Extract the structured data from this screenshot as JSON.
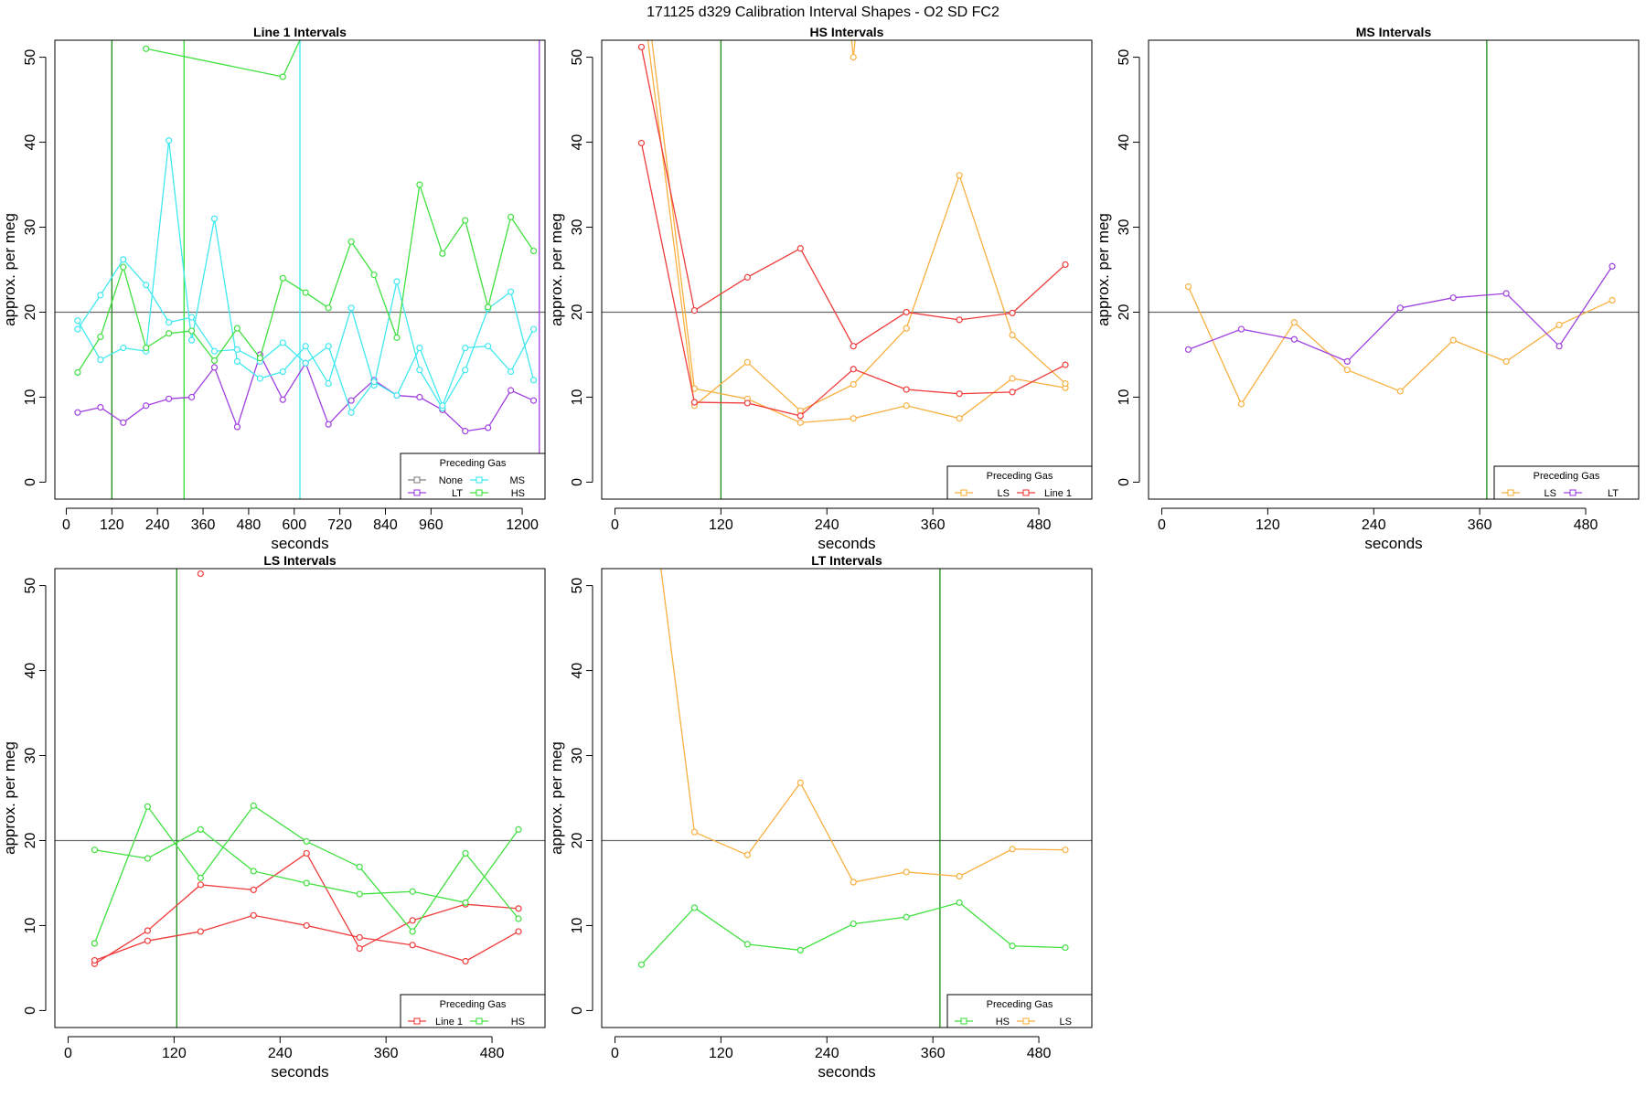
{
  "figure_title": "171125   d329   Calibration Interval Shapes - O2 SD FC2",
  "colors": {
    "None": "#808080",
    "LT": "#a040e0",
    "MS": "#40e8f0",
    "HS": "#40e040",
    "LS": "#f8b040",
    "Line 1": "#f03c3c",
    "vline_green": "#1a8a1a",
    "vline_lime": "#30e030",
    "vline_cyan": "#40e8f0",
    "vline_purple": "#a040e0",
    "ref_line": "#666666"
  },
  "chart_data": [
    {
      "type": "line",
      "title": "Line 1 Intervals",
      "xlabel": "seconds",
      "ylabel": "approx. per meg",
      "xlim": [
        -30,
        1260
      ],
      "ylim": [
        -2,
        52
      ],
      "xticks": [
        0,
        120,
        240,
        360,
        480,
        600,
        720,
        840,
        960,
        1200
      ],
      "yticks": [
        0,
        10,
        20,
        30,
        40,
        50
      ],
      "ref_line": 20,
      "vlines": [
        {
          "x": 120,
          "color": "vline_green"
        },
        {
          "x": 310,
          "color": "vline_lime"
        },
        {
          "x": 615,
          "color": "vline_cyan"
        },
        {
          "x": 1245,
          "color": "vline_purple"
        }
      ],
      "legend": {
        "title": "Preceding Gas",
        "position": "bottom-right",
        "columns": 2,
        "entries": [
          "None",
          "MS",
          "LT",
          "HS"
        ]
      },
      "series": [
        {
          "name": "LT",
          "color": "LT",
          "x": [
            30,
            90,
            150,
            210,
            270,
            330,
            390,
            450,
            510,
            570,
            630,
            690,
            750,
            810,
            870,
            930,
            990,
            1050,
            1110,
            1170,
            1230
          ],
          "y": [
            8.2,
            8.8,
            7.0,
            9.0,
            9.8,
            10.0,
            13.5,
            6.5,
            15.0,
            9.7,
            14.0,
            6.8,
            9.6,
            12.0,
            10.2,
            10.0,
            8.5,
            6.0,
            6.4,
            10.8,
            9.6
          ]
        },
        {
          "name": "MS",
          "color": "MS",
          "x": [
            30,
            90,
            150,
            210,
            270,
            330,
            390,
            450,
            510,
            570,
            630,
            690,
            750,
            810,
            870,
            930,
            990,
            1050,
            1110,
            1170,
            1230
          ],
          "y": [
            19.0,
            14.4,
            15.8,
            15.4,
            40.2,
            16.7,
            31.0,
            14.2,
            12.2,
            13.0,
            16.0,
            11.6,
            20.5,
            11.4,
            23.6,
            13.2,
            8.7,
            13.2,
            20.4,
            22.4,
            12.0
          ]
        },
        {
          "name": "MS",
          "color": "MS",
          "x": [
            30,
            90,
            150,
            210,
            270,
            330,
            390,
            450,
            510,
            570,
            630,
            690,
            750,
            810,
            870,
            930,
            990,
            1050,
            1110,
            1170,
            1230
          ],
          "y": [
            18.0,
            22.0,
            26.2,
            23.2,
            18.8,
            19.4,
            15.4,
            15.6,
            14.2,
            16.4,
            14.0,
            16.0,
            8.2,
            11.8,
            10.2,
            15.8,
            9.0,
            15.8,
            16.0,
            13.0,
            18.0
          ]
        },
        {
          "name": "HS",
          "color": "HS",
          "x": [
            30,
            90,
            150,
            210,
            270,
            330,
            390,
            450,
            510,
            570,
            630,
            690,
            750,
            810,
            870,
            930,
            990,
            1050,
            1110,
            1170,
            1230
          ],
          "y": [
            12.9,
            17.1,
            25.3,
            15.8,
            17.5,
            17.8,
            14.3,
            18.1,
            14.6,
            24.0,
            22.3,
            20.5,
            28.3,
            24.4,
            17.0,
            35.0,
            26.9,
            30.8,
            20.6,
            31.2,
            27.2
          ]
        },
        {
          "name": "HS",
          "color": "HS",
          "x": [
            210,
            570,
            620
          ],
          "y": [
            51.0,
            47.7,
            52.5
          ]
        }
      ]
    },
    {
      "type": "line",
      "title": "HS Intervals",
      "xlabel": "seconds",
      "ylabel": "approx. per meg",
      "xlim": [
        -15,
        540
      ],
      "ylim": [
        -2,
        52
      ],
      "xticks": [
        0,
        120,
        240,
        360,
        480
      ],
      "yticks": [
        0,
        10,
        20,
        30,
        40,
        50
      ],
      "ref_line": 20,
      "vlines": [
        {
          "x": 120,
          "color": "vline_green"
        }
      ],
      "legend": {
        "title": "Preceding Gas",
        "position": "bottom-right",
        "columns": 2,
        "entries": [
          "LS",
          "Line 1"
        ]
      },
      "series": [
        {
          "name": "LS",
          "color": "LS",
          "x": [
            30,
            90,
            150,
            210,
            270,
            330,
            390,
            450,
            510
          ],
          "y": [
            62,
            11.0,
            9.8,
            7.0,
            7.5,
            9.0,
            7.5,
            12.2,
            11.1
          ]
        },
        {
          "name": "LS",
          "color": "LS",
          "x": [
            30,
            90,
            150,
            210,
            270,
            330,
            390,
            450,
            510
          ],
          "y": [
            58,
            9.0,
            14.1,
            8.4,
            11.5,
            18.1,
            36.1,
            17.3,
            11.6
          ]
        },
        {
          "name": "LS",
          "color": "LS",
          "x": [
            265,
            270,
            275
          ],
          "y": [
            55,
            50.0,
            55
          ]
        },
        {
          "name": "Line 1",
          "color": "Line 1",
          "x": [
            30,
            90,
            150,
            210,
            270,
            330,
            390,
            450,
            510
          ],
          "y": [
            51.2,
            20.2,
            24.1,
            27.5,
            16.0,
            20.0,
            19.1,
            19.9,
            25.6
          ]
        },
        {
          "name": "Line 1",
          "color": "Line 1",
          "x": [
            30,
            90,
            150,
            210,
            270,
            330,
            390,
            450,
            510
          ],
          "y": [
            39.9,
            9.4,
            9.3,
            7.8,
            13.3,
            10.9,
            10.4,
            10.6,
            13.8
          ]
        }
      ]
    },
    {
      "type": "line",
      "title": "MS Intervals",
      "xlabel": "seconds",
      "ylabel": "approx. per meg",
      "xlim": [
        -15,
        540
      ],
      "ylim": [
        -2,
        52
      ],
      "xticks": [
        0,
        120,
        240,
        360,
        480
      ],
      "yticks": [
        0,
        10,
        20,
        30,
        40,
        50
      ],
      "ref_line": 20,
      "vlines": [
        {
          "x": 368,
          "color": "vline_green"
        }
      ],
      "legend": {
        "title": "Preceding Gas",
        "position": "bottom-right",
        "columns": 2,
        "entries": [
          "LS",
          "LT"
        ]
      },
      "series": [
        {
          "name": "LS",
          "color": "LS",
          "x": [
            30,
            90,
            150,
            210,
            270,
            330,
            390,
            450,
            510
          ],
          "y": [
            23.0,
            9.2,
            18.8,
            13.2,
            10.7,
            16.7,
            14.2,
            18.5,
            21.4
          ]
        },
        {
          "name": "LT",
          "color": "LT",
          "x": [
            30,
            90,
            150,
            210,
            270,
            330,
            390,
            450,
            510
          ],
          "y": [
            15.6,
            18.0,
            16.8,
            14.2,
            20.5,
            21.7,
            22.2,
            16.0,
            25.4
          ]
        }
      ]
    },
    {
      "type": "line",
      "title": "LS Intervals",
      "xlabel": "seconds",
      "ylabel": "approx. per meg",
      "xlim": [
        -15,
        540
      ],
      "ylim": [
        -2,
        52
      ],
      "xticks": [
        0,
        120,
        240,
        360,
        480
      ],
      "yticks": [
        0,
        10,
        20,
        30,
        40,
        50
      ],
      "ref_line": 20,
      "vlines": [
        {
          "x": 123,
          "color": "vline_green"
        }
      ],
      "legend": {
        "title": "Preceding Gas",
        "position": "bottom-right",
        "columns": 2,
        "entries": [
          "Line 1",
          "HS"
        ]
      },
      "series": [
        {
          "name": "Line 1",
          "color": "Line 1",
          "x": [
            30,
            90,
            150,
            210,
            270,
            330,
            390,
            450,
            510
          ],
          "y": [
            5.5,
            9.4,
            14.8,
            14.2,
            18.5,
            7.3,
            10.6,
            12.5,
            12.0
          ]
        },
        {
          "name": "Line 1",
          "color": "Line 1",
          "x": [
            30,
            90,
            150,
            210,
            270,
            330,
            390,
            450,
            510
          ],
          "y": [
            5.9,
            8.2,
            9.3,
            11.2,
            10.0,
            8.6,
            7.7,
            5.8,
            9.3
          ]
        },
        {
          "name": "Line 1",
          "color": "Line 1",
          "x": [
            150
          ],
          "y": [
            51.4
          ]
        },
        {
          "name": "HS",
          "color": "HS",
          "x": [
            30,
            90,
            150,
            210,
            270,
            330,
            390,
            450,
            510
          ],
          "y": [
            18.9,
            17.9,
            21.3,
            16.4,
            15.0,
            13.7,
            14.0,
            12.7,
            21.3
          ]
        },
        {
          "name": "HS",
          "color": "HS",
          "x": [
            30,
            90,
            150,
            210,
            270,
            330,
            390,
            450,
            510
          ],
          "y": [
            7.9,
            24.0,
            15.6,
            24.1,
            19.9,
            16.9,
            9.3,
            18.5,
            10.8
          ]
        }
      ]
    },
    {
      "type": "line",
      "title": "LT Intervals",
      "xlabel": "seconds",
      "ylabel": "approx. per meg",
      "xlim": [
        -15,
        540
      ],
      "ylim": [
        -2,
        52
      ],
      "xticks": [
        0,
        120,
        240,
        360,
        480
      ],
      "yticks": [
        0,
        10,
        20,
        30,
        40,
        50
      ],
      "ref_line": 20,
      "vlines": [
        {
          "x": 368,
          "color": "vline_green"
        }
      ],
      "legend": {
        "title": "Preceding Gas",
        "position": "bottom-right",
        "columns": 2,
        "entries": [
          "HS",
          "LS"
        ]
      },
      "series": [
        {
          "name": "HS",
          "color": "HS",
          "x": [
            30,
            90,
            150,
            210,
            270,
            330,
            390,
            450,
            510
          ],
          "y": [
            5.4,
            12.1,
            7.8,
            7.1,
            10.2,
            11.0,
            12.7,
            7.6,
            7.4
          ]
        },
        {
          "name": "LS",
          "color": "LS",
          "x": [
            30,
            90,
            150,
            210,
            270,
            330,
            390,
            450,
            510
          ],
          "y": [
            70,
            21.0,
            18.3,
            26.8,
            15.1,
            16.3,
            15.8,
            19.0,
            18.9
          ]
        }
      ]
    }
  ]
}
